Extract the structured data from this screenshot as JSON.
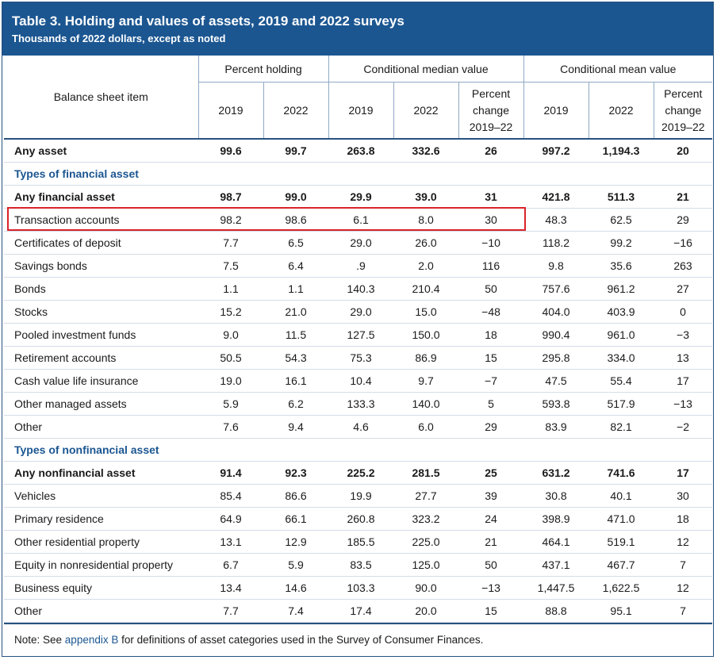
{
  "title": "Table 3. Holding and values of assets, 2019 and 2022 surveys",
  "subtitle": "Thousands of 2022 dollars, except as noted",
  "header": {
    "item_label": "Balance sheet item",
    "groups": [
      "Percent holding",
      "Conditional median value",
      "Conditional mean value"
    ],
    "year_2019": "2019",
    "year_2022": "2022",
    "pct_change": [
      "Percent",
      "change",
      "2019–22"
    ]
  },
  "rows": [
    {
      "kind": "bold",
      "label": "Any asset",
      "values": [
        "99.6",
        "99.7",
        "263.8",
        "332.6",
        "26",
        "997.2",
        "1,194.3",
        "20"
      ]
    },
    {
      "kind": "section",
      "label": "Types of financial asset"
    },
    {
      "kind": "bold",
      "label": "Any financial asset",
      "values": [
        "98.7",
        "99.0",
        "29.9",
        "39.0",
        "31",
        "421.8",
        "511.3",
        "21"
      ]
    },
    {
      "kind": "highlight",
      "label": "Transaction accounts",
      "values": [
        "98.2",
        "98.6",
        "6.1",
        "8.0",
        "30",
        "48.3",
        "62.5",
        "29"
      ]
    },
    {
      "kind": "normal",
      "label": "Certificates of deposit",
      "values": [
        "7.7",
        "6.5",
        "29.0",
        "26.0",
        "−10",
        "118.2",
        "99.2",
        "−16"
      ]
    },
    {
      "kind": "normal",
      "label": "Savings bonds",
      "values": [
        "7.5",
        "6.4",
        ".9",
        "2.0",
        "116",
        "9.8",
        "35.6",
        "263"
      ]
    },
    {
      "kind": "normal",
      "label": "Bonds",
      "values": [
        "1.1",
        "1.1",
        "140.3",
        "210.4",
        "50",
        "757.6",
        "961.2",
        "27"
      ]
    },
    {
      "kind": "normal",
      "label": "Stocks",
      "values": [
        "15.2",
        "21.0",
        "29.0",
        "15.0",
        "−48",
        "404.0",
        "403.9",
        "0"
      ]
    },
    {
      "kind": "normal",
      "label": "Pooled investment funds",
      "values": [
        "9.0",
        "11.5",
        "127.5",
        "150.0",
        "18",
        "990.4",
        "961.0",
        "−3"
      ]
    },
    {
      "kind": "normal",
      "label": "Retirement accounts",
      "values": [
        "50.5",
        "54.3",
        "75.3",
        "86.9",
        "15",
        "295.8",
        "334.0",
        "13"
      ]
    },
    {
      "kind": "normal",
      "label": "Cash value life insurance",
      "values": [
        "19.0",
        "16.1",
        "10.4",
        "9.7",
        "−7",
        "47.5",
        "55.4",
        "17"
      ]
    },
    {
      "kind": "normal",
      "label": "Other managed assets",
      "values": [
        "5.9",
        "6.2",
        "133.3",
        "140.0",
        "5",
        "593.8",
        "517.9",
        "−13"
      ]
    },
    {
      "kind": "normal",
      "label": "Other",
      "values": [
        "7.6",
        "9.4",
        "4.6",
        "6.0",
        "29",
        "83.9",
        "82.1",
        "−2"
      ]
    },
    {
      "kind": "section",
      "label": "Types of nonfinancial asset"
    },
    {
      "kind": "bold",
      "label": "Any nonfinancial asset",
      "values": [
        "91.4",
        "92.3",
        "225.2",
        "281.5",
        "25",
        "631.2",
        "741.6",
        "17"
      ]
    },
    {
      "kind": "normal",
      "label": "Vehicles",
      "values": [
        "85.4",
        "86.6",
        "19.9",
        "27.7",
        "39",
        "30.8",
        "40.1",
        "30"
      ]
    },
    {
      "kind": "normal",
      "label": "Primary residence",
      "values": [
        "64.9",
        "66.1",
        "260.8",
        "323.2",
        "24",
        "398.9",
        "471.0",
        "18"
      ]
    },
    {
      "kind": "normal",
      "label": "Other residential property",
      "values": [
        "13.1",
        "12.9",
        "185.5",
        "225.0",
        "21",
        "464.1",
        "519.1",
        "12"
      ]
    },
    {
      "kind": "normal",
      "label": "Equity in nonresidential property",
      "values": [
        "6.7",
        "5.9",
        "83.5",
        "125.0",
        "50",
        "437.1",
        "467.7",
        "7"
      ]
    },
    {
      "kind": "normal",
      "label": "Business equity",
      "values": [
        "13.4",
        "14.6",
        "103.3",
        "90.0",
        "−13",
        "1,447.5",
        "1,622.5",
        "12"
      ]
    },
    {
      "kind": "normal",
      "label": "Other",
      "values": [
        "7.7",
        "7.4",
        "17.4",
        "20.0",
        "15",
        "88.8",
        "95.1",
        "7"
      ]
    }
  ],
  "note": {
    "prefix": "Note: See ",
    "link": "appendix B",
    "suffix": " for definitions of asset categories used in the Survey of Consumer Finances."
  },
  "colors": {
    "header_bg": "#1b5691",
    "section_text": "#1b5691",
    "highlight_border": "#d9232a"
  }
}
